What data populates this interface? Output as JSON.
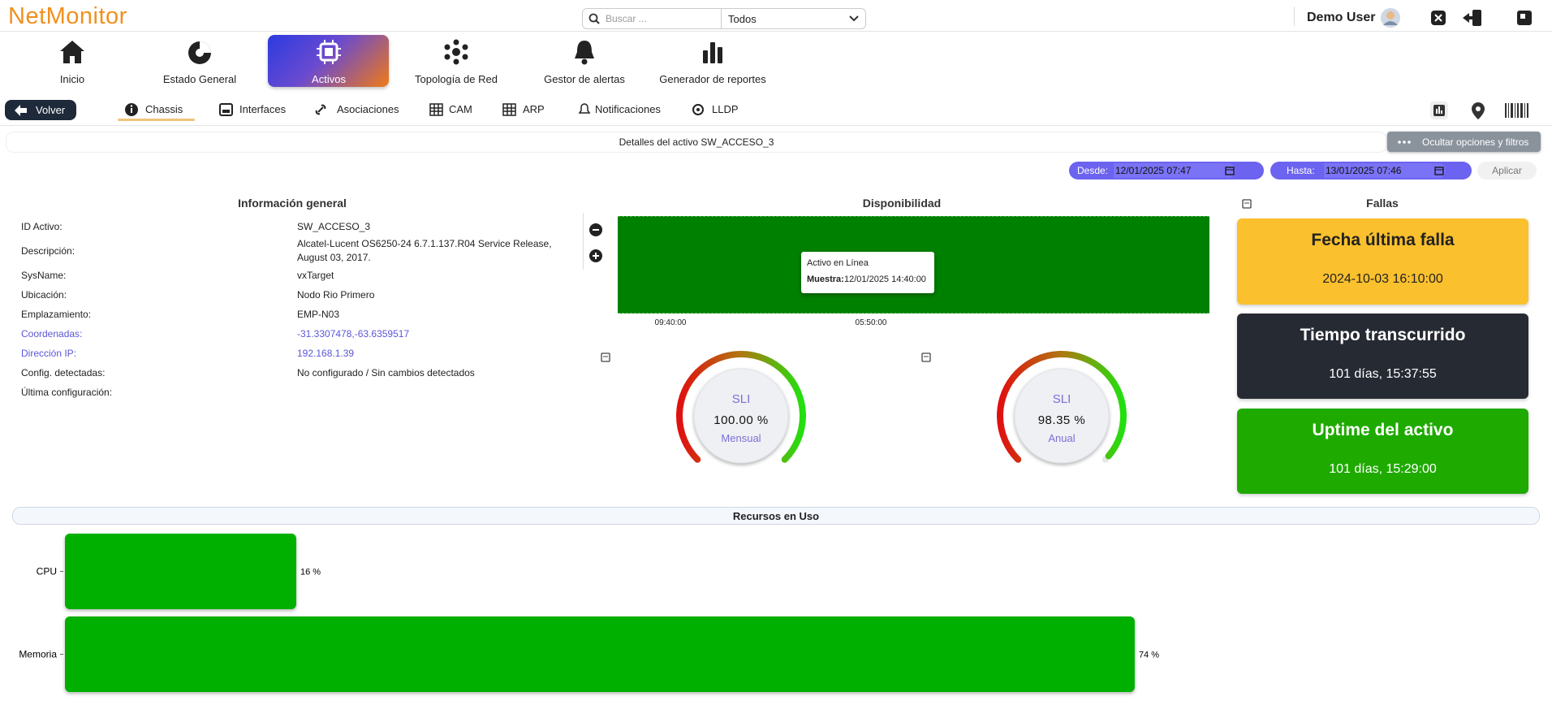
{
  "header": {
    "logo": "NetMonitor",
    "search_placeholder": "Buscar ...",
    "filter": "Todos",
    "user": "Demo User"
  },
  "nav": [
    "Inicio",
    "Estado General",
    "Activos",
    "Topología de Red",
    "Gestor de alertas",
    "Generador de reportes"
  ],
  "back": "Volver",
  "tabs": [
    "Chassis",
    "Interfaces",
    "Asociaciones",
    "CAM",
    "ARP",
    "Notificaciones",
    "LLDP"
  ],
  "details_title": "Detalles del activo SW_ACCESO_3",
  "toggle_options": "Ocultar opciones y filtros",
  "filters": {
    "from_label": "Desde:",
    "from": "12/01/2025 07:47",
    "to_label": "Hasta:",
    "to": "13/01/2025 07:46",
    "apply": "Aplicar"
  },
  "general_info": {
    "title": "Información general",
    "rows": [
      [
        "ID Activo:",
        "SW_ACCESO_3"
      ],
      [
        "Descripción:",
        "Alcatel-Lucent OS6250-24 6.7.1.137.R04 Service Release, August 03, 2017."
      ],
      [
        "SysName:",
        "vxTarget"
      ],
      [
        "Ubicación:",
        "Nodo Rio Primero"
      ],
      [
        "Emplazamiento:",
        "EMP-N03"
      ],
      [
        "Coordenadas:",
        "-31.3307478,-63.6359517"
      ],
      [
        "Dirección IP:",
        "192.168.1.39"
      ],
      [
        "Config. detectadas:",
        "No configurado / Sin cambios detectados"
      ],
      [
        "Última configuración:",
        ""
      ]
    ]
  },
  "availability": {
    "title": "Disponibilidad",
    "status": "Activo en Línea",
    "sample_label": "Muestra:",
    "sample": "12/01/2025 14:40:00",
    "time_labels": [
      "09:40:00",
      "05:50:00"
    ]
  },
  "faults": {
    "title": "Fallas",
    "cards": [
      {
        "title": "Fecha última falla",
        "value": "2024-10-03 16:10:00"
      },
      {
        "title": "Tiempo transcurrido",
        "value": "101 días, 15:37:55"
      },
      {
        "title": "Uptime del activo",
        "value": "101 días, 15:29:00"
      }
    ]
  },
  "chart_data": [
    {
      "type": "bar",
      "title": "Recursos en Uso",
      "orientation": "horizontal",
      "categories": [
        "CPU",
        "Memoria"
      ],
      "values": [
        16,
        74
      ],
      "value_labels": [
        "16 %",
        "74 %"
      ],
      "xlim": [
        0,
        100
      ],
      "color": "#00b000"
    },
    {
      "type": "gauge",
      "title": "SLI",
      "subtitle": "Mensual",
      "values": [
        100.0
      ],
      "value_labels": [
        "100.00 %"
      ],
      "ylim": [
        0,
        100
      ]
    },
    {
      "type": "gauge",
      "title": "SLI",
      "subtitle": "Anual",
      "values": [
        98.35
      ],
      "value_labels": [
        "98.35 %"
      ],
      "ylim": [
        0,
        100
      ]
    }
  ]
}
